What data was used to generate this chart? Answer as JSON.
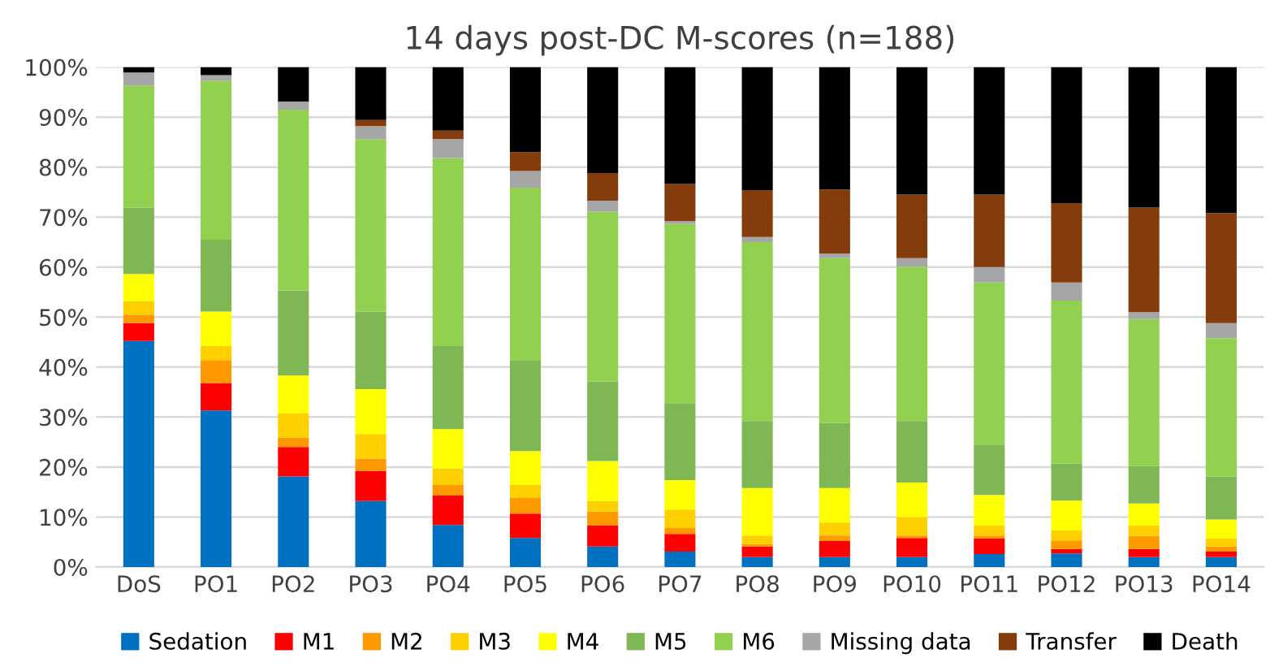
{
  "chart_data": {
    "type": "bar",
    "title": "14 days post-DC M-scores (n=188)",
    "stacked": true,
    "grid": "y",
    "legend": "bottom",
    "categories": [
      "DoS",
      "PO1",
      "PO2",
      "PO3",
      "PO4",
      "PO5",
      "PO6",
      "PO7",
      "PO8",
      "PO9",
      "PO10",
      "PO11",
      "PO12",
      "PO13",
      "PO14"
    ],
    "ylim": [
      0,
      100
    ],
    "yticks": [
      {
        "value": 0,
        "label": "0%"
      },
      {
        "value": 10,
        "label": "10%"
      },
      {
        "value": 20,
        "label": "20%"
      },
      {
        "value": 30,
        "label": "30%"
      },
      {
        "value": 40,
        "label": "40%"
      },
      {
        "value": 50,
        "label": "50%"
      },
      {
        "value": 60,
        "label": "60%"
      },
      {
        "value": 70,
        "label": "70%"
      },
      {
        "value": 80,
        "label": "80%"
      },
      {
        "value": 90,
        "label": "90%"
      },
      {
        "value": 100,
        "label": "100%"
      }
    ],
    "series": [
      {
        "name": "Sedation",
        "color": "#0070c0",
        "values": [
          45.2,
          31.3,
          18.1,
          13.2,
          8.4,
          5.8,
          4.1,
          3.1,
          2.0,
          2.0,
          2.0,
          2.6,
          2.7,
          2.0,
          2.0
        ]
      },
      {
        "name": "M1",
        "color": "#ff0000",
        "values": [
          3.6,
          5.5,
          5.9,
          6.0,
          5.9,
          4.9,
          4.2,
          3.5,
          2.1,
          3.2,
          3.8,
          3.1,
          0.9,
          1.6,
          1.1
        ]
      },
      {
        "name": "M2",
        "color": "#ff9900",
        "values": [
          1.7,
          4.6,
          1.9,
          2.5,
          2.1,
          3.1,
          2.8,
          1.2,
          0.5,
          1.1,
          0.5,
          0.6,
          1.7,
          2.6,
          1.0
        ]
      },
      {
        "name": "M3",
        "color": "#ffd000",
        "values": [
          2.7,
          2.8,
          4.8,
          4.9,
          3.3,
          2.6,
          2.1,
          3.7,
          1.7,
          2.6,
          3.7,
          2.0,
          2.0,
          2.1,
          1.6
        ]
      },
      {
        "name": "M4",
        "color": "#ffff00",
        "values": [
          5.4,
          6.9,
          7.6,
          9.0,
          7.9,
          6.8,
          8.0,
          5.9,
          9.5,
          6.9,
          6.9,
          6.1,
          6.0,
          4.4,
          3.8
        ]
      },
      {
        "name": "M5",
        "color": "#7fb755",
        "values": [
          13.3,
          14.4,
          17.0,
          15.5,
          16.6,
          18.2,
          15.9,
          15.4,
          13.4,
          13.0,
          12.3,
          10.1,
          7.4,
          7.5,
          8.6
        ]
      },
      {
        "name": "M6",
        "color": "#92d050",
        "values": [
          24.4,
          31.8,
          36.2,
          34.5,
          37.6,
          34.5,
          34.0,
          35.8,
          35.8,
          33.0,
          30.9,
          32.4,
          32.6,
          29.4,
          27.7
        ]
      },
      {
        "name": "Missing data",
        "color": "#a6a6a6",
        "values": [
          2.6,
          1.1,
          1.6,
          2.6,
          3.8,
          3.3,
          2.2,
          0.6,
          1.0,
          0.9,
          1.7,
          3.1,
          3.6,
          1.4,
          3.0
        ]
      },
      {
        "name": "Transfer",
        "color": "#843c0c",
        "values": [
          0,
          0,
          0,
          1.2,
          1.7,
          3.8,
          5.5,
          7.4,
          9.4,
          12.8,
          12.7,
          14.5,
          15.9,
          20.9,
          22.0
        ]
      },
      {
        "name": "Death",
        "color": "#000000",
        "values": [
          1.1,
          1.6,
          6.9,
          10.6,
          12.7,
          17.0,
          21.2,
          23.4,
          24.6,
          24.5,
          25.5,
          25.5,
          27.2,
          28.1,
          29.2
        ]
      }
    ]
  }
}
